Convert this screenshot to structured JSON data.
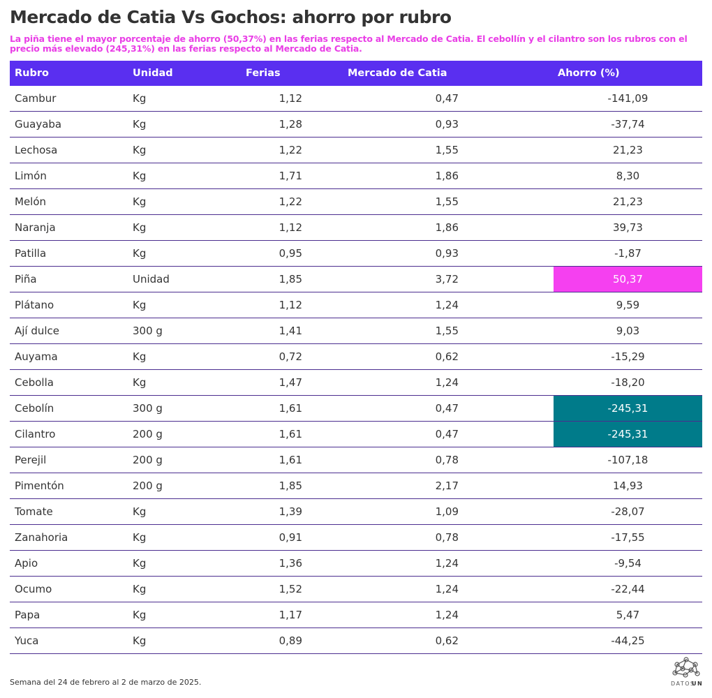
{
  "header": {
    "title": "Mercado de Catia Vs Gochos: ahorro por rubro",
    "subtitle": "La piña tiene el mayor porcentaje de ahorro (50,37%) en las ferias respecto al Mercado de Catia. El cebollín y el cilantro son los rubros con el precio más elevado (245,31%) en las ferias respecto al Mercado de Catia."
  },
  "table": {
    "columns": [
      "Rubro",
      "Unidad",
      "Ferias",
      "Mercado de Catia",
      "Ahorro (%)"
    ],
    "rows": [
      [
        "Cambur",
        "Kg",
        "1,12",
        "0,47",
        "-141,09"
      ],
      [
        "Guayaba",
        "Kg",
        "1,28",
        "0,93",
        "-37,74"
      ],
      [
        "Lechosa",
        "Kg",
        "1,22",
        "1,55",
        "21,23"
      ],
      [
        "Limón",
        "Kg",
        "1,71",
        "1,86",
        "8,30"
      ],
      [
        "Melón",
        "Kg",
        "1,22",
        "1,55",
        "21,23"
      ],
      [
        "Naranja",
        "Kg",
        "1,12",
        "1,86",
        "39,73"
      ],
      [
        "Patilla",
        "Kg",
        "0,95",
        "0,93",
        "-1,87"
      ],
      [
        "Piña",
        "Unidad",
        "1,85",
        "3,72",
        "50,37"
      ],
      [
        "Plátano",
        "Kg",
        "1,12",
        "1,24",
        "9,59"
      ],
      [
        "Ají dulce",
        "300 g",
        "1,41",
        "1,55",
        "9,03"
      ],
      [
        "Auyama",
        "Kg",
        "0,72",
        "0,62",
        "-15,29"
      ],
      [
        "Cebolla",
        "Kg",
        "1,47",
        "1,24",
        "-18,20"
      ],
      [
        "Cebolín",
        "300 g",
        "1,61",
        "0,47",
        "-245,31"
      ],
      [
        "Cilantro",
        "200 g",
        "1,61",
        "0,47",
        "-245,31"
      ],
      [
        "Perejil",
        "200 g",
        "1,61",
        "0,78",
        "-107,18"
      ],
      [
        "Pimentón",
        "200 g",
        "1,85",
        "2,17",
        "14,93"
      ],
      [
        "Tomate",
        "Kg",
        "1,39",
        "1,09",
        "-28,07"
      ],
      [
        "Zanahoria",
        "Kg",
        "0,91",
        "0,78",
        "-17,55"
      ],
      [
        "Apio",
        "Kg",
        "1,36",
        "1,24",
        "-9,54"
      ],
      [
        "Ocumo",
        "Kg",
        "1,52",
        "1,24",
        "-22,44"
      ],
      [
        "Papa",
        "Kg",
        "1,17",
        "1,24",
        "5,47"
      ],
      [
        "Yuca",
        "Kg",
        "0,89",
        "0,62",
        "-44,25"
      ]
    ],
    "highlights": [
      {
        "row": 7,
        "color": "#f540f0"
      },
      {
        "row": 12,
        "color": "#007b8a"
      },
      {
        "row": 13,
        "color": "#007b8a"
      }
    ]
  },
  "footer": {
    "note": "Semana del 24 de febrero al 2 de marzo de 2025.",
    "logo": [
      "DATOS",
      "UN"
    ]
  }
}
